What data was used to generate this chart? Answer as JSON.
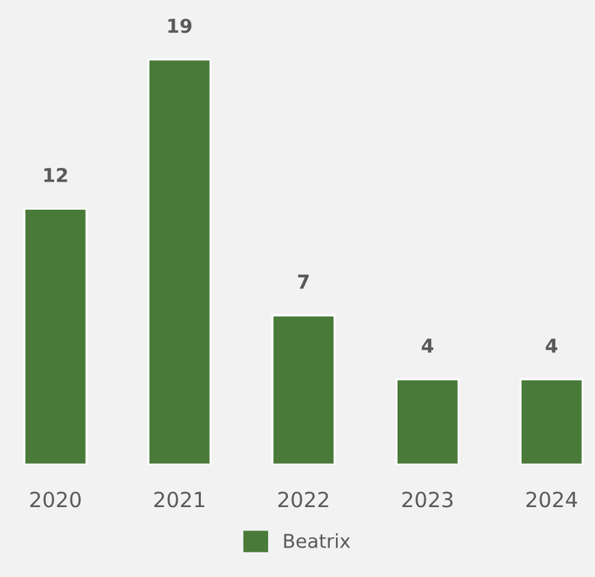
{
  "chart_data": {
    "type": "bar",
    "categories": [
      "2020",
      "2021",
      "2022",
      "2023",
      "2024"
    ],
    "series": [
      {
        "name": "Beatrix",
        "color": "#4a7a3a",
        "values": [
          12,
          19,
          7,
          4,
          4
        ]
      }
    ],
    "data_labels": true,
    "grid": false,
    "legend": "bottom"
  }
}
